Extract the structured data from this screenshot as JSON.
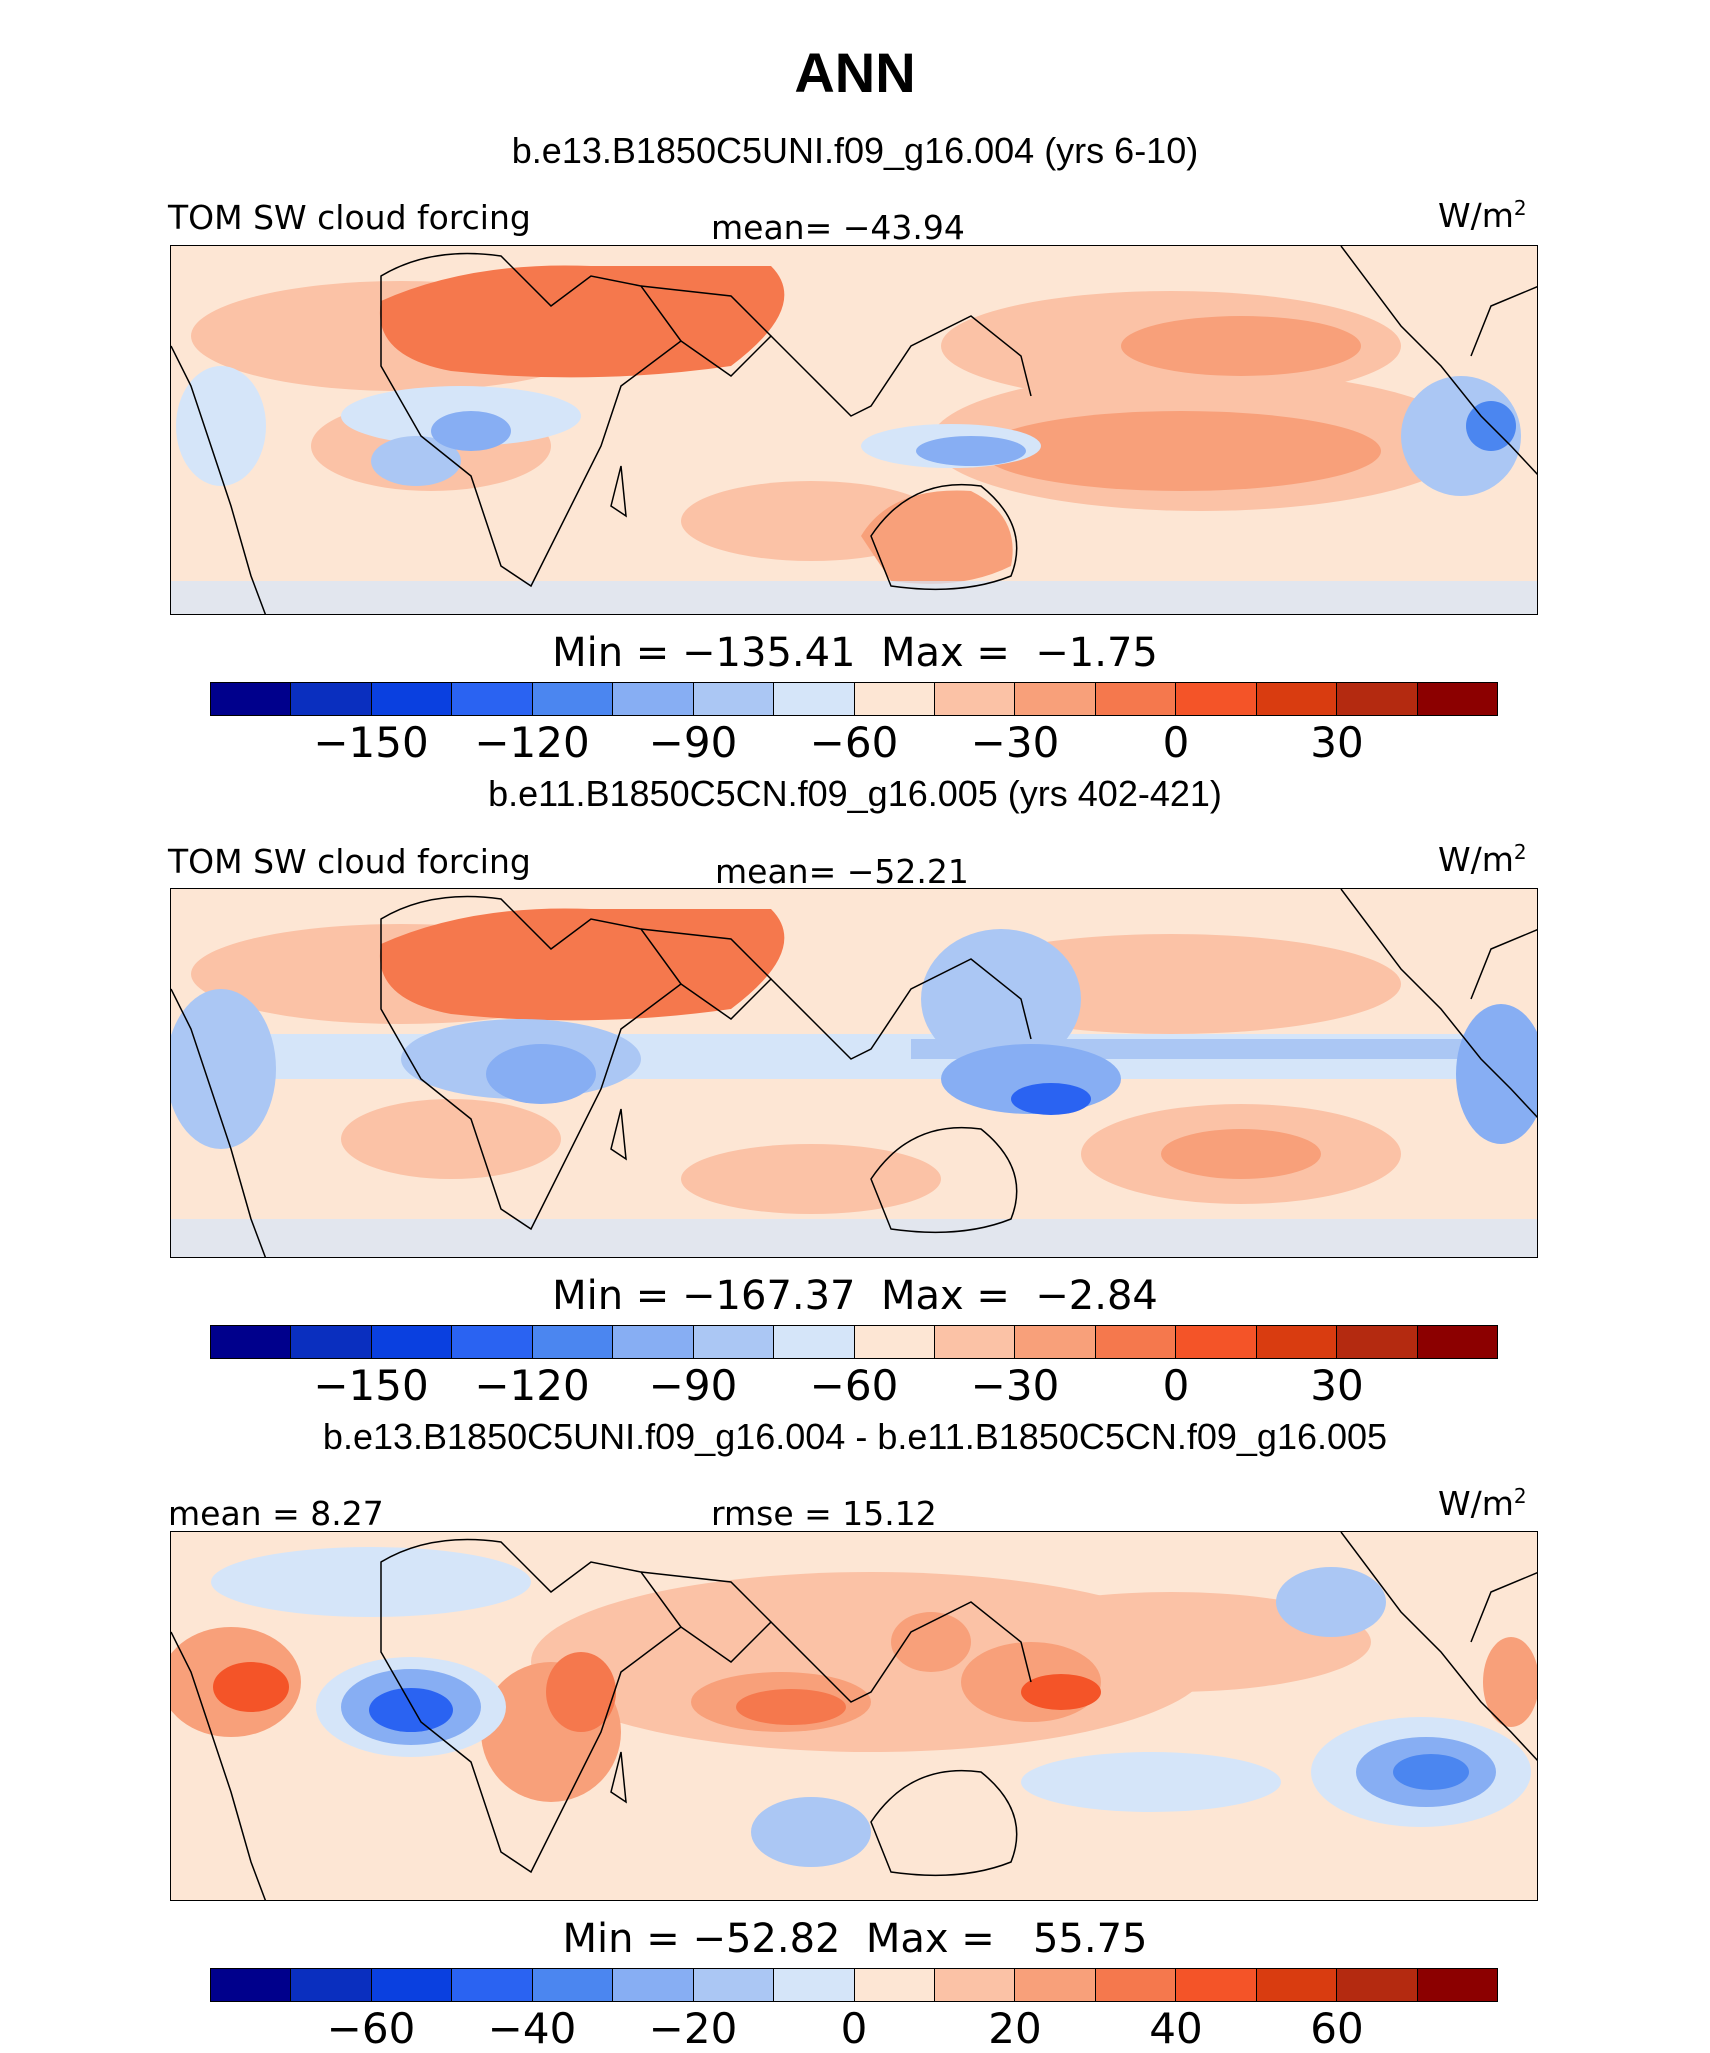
{
  "title": "ANN",
  "units": "W/m",
  "units_sup": "2",
  "palette": [
    "#00008c",
    "#0a2fbf",
    "#0a40e0",
    "#2a63f2",
    "#4b86f0",
    "#87aef3",
    "#abc7f4",
    "#d5e5f9",
    "#fde6d4",
    "#fbc2a6",
    "#f8a07a",
    "#f5784d",
    "#f45428",
    "#d93c10",
    "#b42a10",
    "#8c0000"
  ],
  "colorbar_ticks_abs": [
    "−150",
    "−120",
    "−90",
    "−60",
    "−30",
    "0",
    "30"
  ],
  "colorbar_ticks_diff": [
    "−60",
    "−40",
    "−20",
    "0",
    "20",
    "40",
    "60"
  ],
  "panels": [
    {
      "case": "b.e13.B1850C5UNI.f09_g16.004 (yrs 6-10)",
      "left_label": "TOM SW cloud forcing",
      "stat_label": "mean= −43.94",
      "minmax": "Min = −135.41  Max =  −1.75",
      "color_levels": [
        8,
        10,
        9,
        8,
        7,
        10,
        9,
        11
      ]
    },
    {
      "case": "b.e11.B1850C5CN.f09_g16.005 (yrs 402-421)",
      "left_label": "TOM SW cloud forcing",
      "stat_label": "mean= −52.21",
      "minmax": "Min = −167.37  Max =  −2.84",
      "color_levels": [
        8,
        10,
        7,
        6,
        7,
        9,
        5,
        10
      ]
    },
    {
      "case": "b.e13.B1850C5UNI.f09_g16.004 - b.e11.B1850C5CN.f09_g16.005",
      "left_label": "mean =   8.27",
      "stat_label": "rmse =   15.12",
      "minmax": "Min = −52.82  Max =   55.75",
      "color_levels": [
        8,
        9,
        6,
        9,
        10,
        9,
        5,
        8
      ]
    }
  ]
}
